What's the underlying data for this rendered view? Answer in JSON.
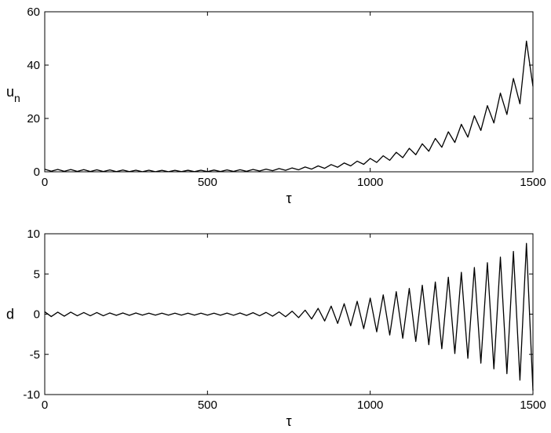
{
  "chart_data": [
    {
      "type": "line",
      "ylabel": "u",
      "ylabel_sub": "n",
      "xlabel": "τ",
      "xlim": [
        0,
        1500
      ],
      "xticks": [
        0,
        500,
        1000,
        1500
      ],
      "ylim": [
        0,
        60
      ],
      "yticks": [
        0,
        20,
        40,
        60
      ],
      "grid": false,
      "color": "#000000",
      "x": [
        0,
        20,
        40,
        60,
        80,
        100,
        120,
        140,
        160,
        180,
        200,
        220,
        240,
        260,
        280,
        300,
        320,
        340,
        360,
        380,
        400,
        420,
        440,
        460,
        480,
        500,
        520,
        540,
        560,
        580,
        600,
        620,
        640,
        660,
        680,
        700,
        720,
        740,
        760,
        780,
        800,
        820,
        840,
        860,
        880,
        900,
        920,
        940,
        960,
        980,
        1000,
        1020,
        1040,
        1060,
        1080,
        1100,
        1120,
        1140,
        1160,
        1180,
        1200,
        1220,
        1240,
        1260,
        1280,
        1300,
        1320,
        1340,
        1360,
        1380,
        1400,
        1420,
        1440,
        1460,
        1480,
        1500
      ],
      "values": [
        0.95,
        0.23,
        0.9,
        0.2,
        0.85,
        0.15,
        0.8,
        0.12,
        0.75,
        0.1,
        0.7,
        0.08,
        0.65,
        0.06,
        0.6,
        0.05,
        0.58,
        0.05,
        0.56,
        0.05,
        0.56,
        0.06,
        0.57,
        0.07,
        0.6,
        0.08,
        0.64,
        0.1,
        0.7,
        0.14,
        0.78,
        0.2,
        0.88,
        0.28,
        1.0,
        0.4,
        1.2,
        0.55,
        1.45,
        0.75,
        1.8,
        1.0,
        2.2,
        1.3,
        2.7,
        1.7,
        3.3,
        2.2,
        4.0,
        2.8,
        5.0,
        3.5,
        6.0,
        4.3,
        7.3,
        5.3,
        8.8,
        6.4,
        10.5,
        7.7,
        12.5,
        9.2,
        15.0,
        11.0,
        17.8,
        13.0,
        21.0,
        15.5,
        24.8,
        18.3,
        29.5,
        21.5,
        35.0,
        25.5,
        49.0,
        32.0
      ]
    },
    {
      "type": "line",
      "ylabel": "d",
      "xlabel": "τ",
      "xlim": [
        0,
        1500
      ],
      "xticks": [
        0,
        500,
        1000,
        1500
      ],
      "ylim": [
        -10,
        10
      ],
      "yticks": [
        -10,
        -5,
        0,
        5,
        10
      ],
      "grid": false,
      "color": "#000000",
      "x": [
        0,
        20,
        40,
        60,
        80,
        100,
        120,
        140,
        160,
        180,
        200,
        220,
        240,
        260,
        280,
        300,
        320,
        340,
        360,
        380,
        400,
        420,
        440,
        460,
        480,
        500,
        520,
        540,
        560,
        580,
        600,
        620,
        640,
        660,
        680,
        700,
        720,
        740,
        760,
        780,
        800,
        820,
        840,
        860,
        880,
        900,
        920,
        940,
        960,
        980,
        1000,
        1020,
        1040,
        1060,
        1080,
        1100,
        1120,
        1140,
        1160,
        1180,
        1200,
        1220,
        1240,
        1260,
        1280,
        1300,
        1320,
        1340,
        1360,
        1380,
        1400,
        1420,
        1440,
        1460,
        1480,
        1500
      ],
      "values": [
        0.3,
        -0.3,
        0.25,
        -0.25,
        0.25,
        -0.2,
        0.2,
        -0.2,
        0.2,
        -0.2,
        0.15,
        -0.15,
        0.15,
        -0.15,
        0.15,
        -0.12,
        0.12,
        -0.12,
        0.12,
        -0.12,
        0.12,
        -0.12,
        0.12,
        -0.12,
        0.12,
        -0.12,
        0.12,
        -0.13,
        0.13,
        -0.14,
        0.15,
        -0.16,
        0.18,
        -0.2,
        0.22,
        -0.25,
        0.28,
        -0.32,
        0.37,
        -0.43,
        0.5,
        -0.6,
        0.72,
        -0.85,
        1.0,
        -1.15,
        1.3,
        -1.45,
        1.6,
        -1.8,
        2.0,
        -2.2,
        2.4,
        -2.6,
        2.8,
        -3.0,
        3.2,
        -3.4,
        3.6,
        -3.8,
        4.0,
        -4.3,
        4.6,
        -4.9,
        5.2,
        -5.5,
        5.8,
        -6.1,
        6.4,
        -6.8,
        7.1,
        -7.4,
        7.8,
        -8.2,
        8.8,
        -9.5
      ]
    }
  ]
}
